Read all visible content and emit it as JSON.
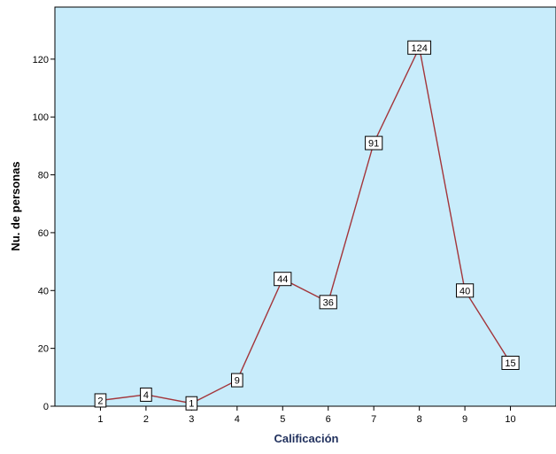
{
  "chart_data": {
    "type": "line",
    "title": "",
    "xlabel": "Calificación",
    "ylabel": "Nu. de personas",
    "x": [
      1,
      2,
      3,
      4,
      5,
      6,
      7,
      8,
      9,
      10
    ],
    "series": [
      {
        "values": [
          2,
          4,
          1,
          9,
          44,
          36,
          91,
          124,
          40,
          15
        ]
      }
    ],
    "data_labels": [
      "2",
      "4",
      "1",
      "9",
      "44",
      "36",
      "91",
      "124",
      "40",
      "15"
    ],
    "xticks": [
      "1",
      "2",
      "3",
      "4",
      "5",
      "6",
      "7",
      "8",
      "9",
      "10"
    ],
    "yticks": [
      "0",
      "20",
      "40",
      "60",
      "80",
      "100",
      "120"
    ],
    "xlim": [
      0,
      11
    ],
    "ylim": [
      0,
      138
    ],
    "grid": false,
    "legend": "none",
    "colors": {
      "plot_background": "#c8ecfb",
      "line": "#a3353a",
      "xlabel": "#1f2f5c",
      "ylabel": "#000000",
      "label_box_fill": "#ffffff",
      "label_box_border": "#000000"
    }
  }
}
